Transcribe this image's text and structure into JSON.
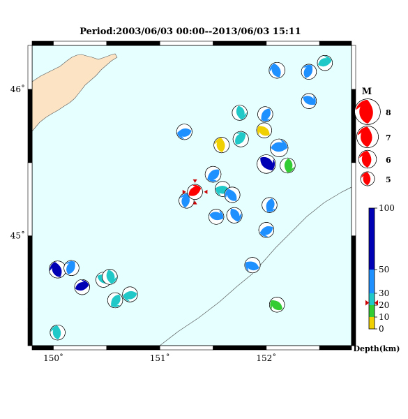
{
  "title": "Period:2003/06/03 00:00--2013/06/03 15:11",
  "map": {
    "lon_range": [
      149.8,
      152.8
    ],
    "lat_range": [
      44.25,
      46.3
    ],
    "lon_ticks": [
      {
        "value": 150,
        "label": "150˚"
      },
      {
        "value": 151,
        "label": "151˚"
      },
      {
        "value": 152,
        "label": "152˚"
      }
    ],
    "lat_ticks": [
      {
        "value": 45,
        "label": "45˚"
      },
      {
        "value": 46,
        "label": "46˚"
      }
    ],
    "sea_color": "#e6ffff",
    "land_color": "#fbe3c4",
    "trench_color": "#555555",
    "mainshock_lon": 151.33,
    "mainshock_lat": 45.3
  },
  "magnitude_legend": {
    "title": "M",
    "items": [
      {
        "m": 8,
        "label": "8"
      },
      {
        "m": 7,
        "label": "7"
      },
      {
        "m": 6,
        "label": "6"
      },
      {
        "m": 5,
        "label": "5"
      }
    ]
  },
  "depth_scale": {
    "title": "Depth(km)",
    "ticks": [
      {
        "value": 0,
        "label": "0"
      },
      {
        "value": 10,
        "label": "10"
      },
      {
        "value": 20,
        "label": "20"
      },
      {
        "value": 30,
        "label": "30"
      },
      {
        "value": 50,
        "label": "50"
      },
      {
        "value": 100,
        "label": "100"
      }
    ],
    "segments": [
      {
        "from": 0,
        "to": 10,
        "color": "#f0d000"
      },
      {
        "from": 10,
        "to": 20,
        "color": "#33cc33"
      },
      {
        "from": 20,
        "to": 30,
        "color": "#20c8c8"
      },
      {
        "from": 30,
        "to": 50,
        "color": "#1e90ff"
      },
      {
        "from": 50,
        "to": 100,
        "color": "#0000b4"
      }
    ],
    "mainshock_depth": 22
  },
  "events": [
    {
      "lon": 152.1,
      "lat": 46.13,
      "depth": 40,
      "mag": 5.5
    },
    {
      "lon": 152.4,
      "lat": 46.12,
      "depth": 40,
      "mag": 5.3
    },
    {
      "lon": 152.55,
      "lat": 46.18,
      "depth": 25,
      "mag": 5.3
    },
    {
      "lon": 152.4,
      "lat": 45.92,
      "depth": 40,
      "mag": 5.3
    },
    {
      "lon": 151.75,
      "lat": 45.84,
      "depth": 25,
      "mag": 5.3
    },
    {
      "lon": 151.99,
      "lat": 45.83,
      "depth": 40,
      "mag": 5.3
    },
    {
      "lon": 151.23,
      "lat": 45.71,
      "depth": 40,
      "mag": 5.4
    },
    {
      "lon": 151.98,
      "lat": 45.72,
      "depth": 5,
      "mag": 5.3
    },
    {
      "lon": 151.58,
      "lat": 45.62,
      "depth": 5,
      "mag": 5.4
    },
    {
      "lon": 151.76,
      "lat": 45.66,
      "depth": 25,
      "mag": 5.4
    },
    {
      "lon": 152.12,
      "lat": 45.6,
      "depth": 40,
      "mag": 6.0
    },
    {
      "lon": 152.0,
      "lat": 45.49,
      "depth": 80,
      "mag": 6.2
    },
    {
      "lon": 152.2,
      "lat": 45.48,
      "depth": 15,
      "mag": 5.3
    },
    {
      "lon": 151.5,
      "lat": 45.42,
      "depth": 40,
      "mag": 5.5
    },
    {
      "lon": 151.59,
      "lat": 45.32,
      "depth": 25,
      "mag": 5.3
    },
    {
      "lon": 151.68,
      "lat": 45.28,
      "depth": 40,
      "mag": 5.4
    },
    {
      "lon": 151.25,
      "lat": 45.24,
      "depth": 40,
      "mag": 5.3
    },
    {
      "lon": 151.33,
      "lat": 45.3,
      "depth": 22,
      "mag": 5.3
    },
    {
      "lon": 151.53,
      "lat": 45.13,
      "depth": 40,
      "mag": 5.3
    },
    {
      "lon": 151.7,
      "lat": 45.14,
      "depth": 40,
      "mag": 5.4
    },
    {
      "lon": 152.03,
      "lat": 45.21,
      "depth": 40,
      "mag": 5.3
    },
    {
      "lon": 152.0,
      "lat": 45.04,
      "depth": 40,
      "mag": 5.3
    },
    {
      "lon": 151.87,
      "lat": 44.8,
      "depth": 40,
      "mag": 5.4
    },
    {
      "lon": 150.04,
      "lat": 44.77,
      "depth": 80,
      "mag": 5.8
    },
    {
      "lon": 150.17,
      "lat": 44.78,
      "depth": 40,
      "mag": 5.3
    },
    {
      "lon": 150.27,
      "lat": 44.65,
      "depth": 80,
      "mag": 5.3
    },
    {
      "lon": 150.47,
      "lat": 44.7,
      "depth": 25,
      "mag": 5.3
    },
    {
      "lon": 150.53,
      "lat": 44.72,
      "depth": 25,
      "mag": 5.3
    },
    {
      "lon": 150.58,
      "lat": 44.56,
      "depth": 25,
      "mag": 5.3
    },
    {
      "lon": 150.72,
      "lat": 44.6,
      "depth": 25,
      "mag": 5.3
    },
    {
      "lon": 152.1,
      "lat": 44.53,
      "depth": 15,
      "mag": 5.3
    },
    {
      "lon": 150.04,
      "lat": 44.34,
      "depth": 25,
      "mag": 5.3
    }
  ]
}
